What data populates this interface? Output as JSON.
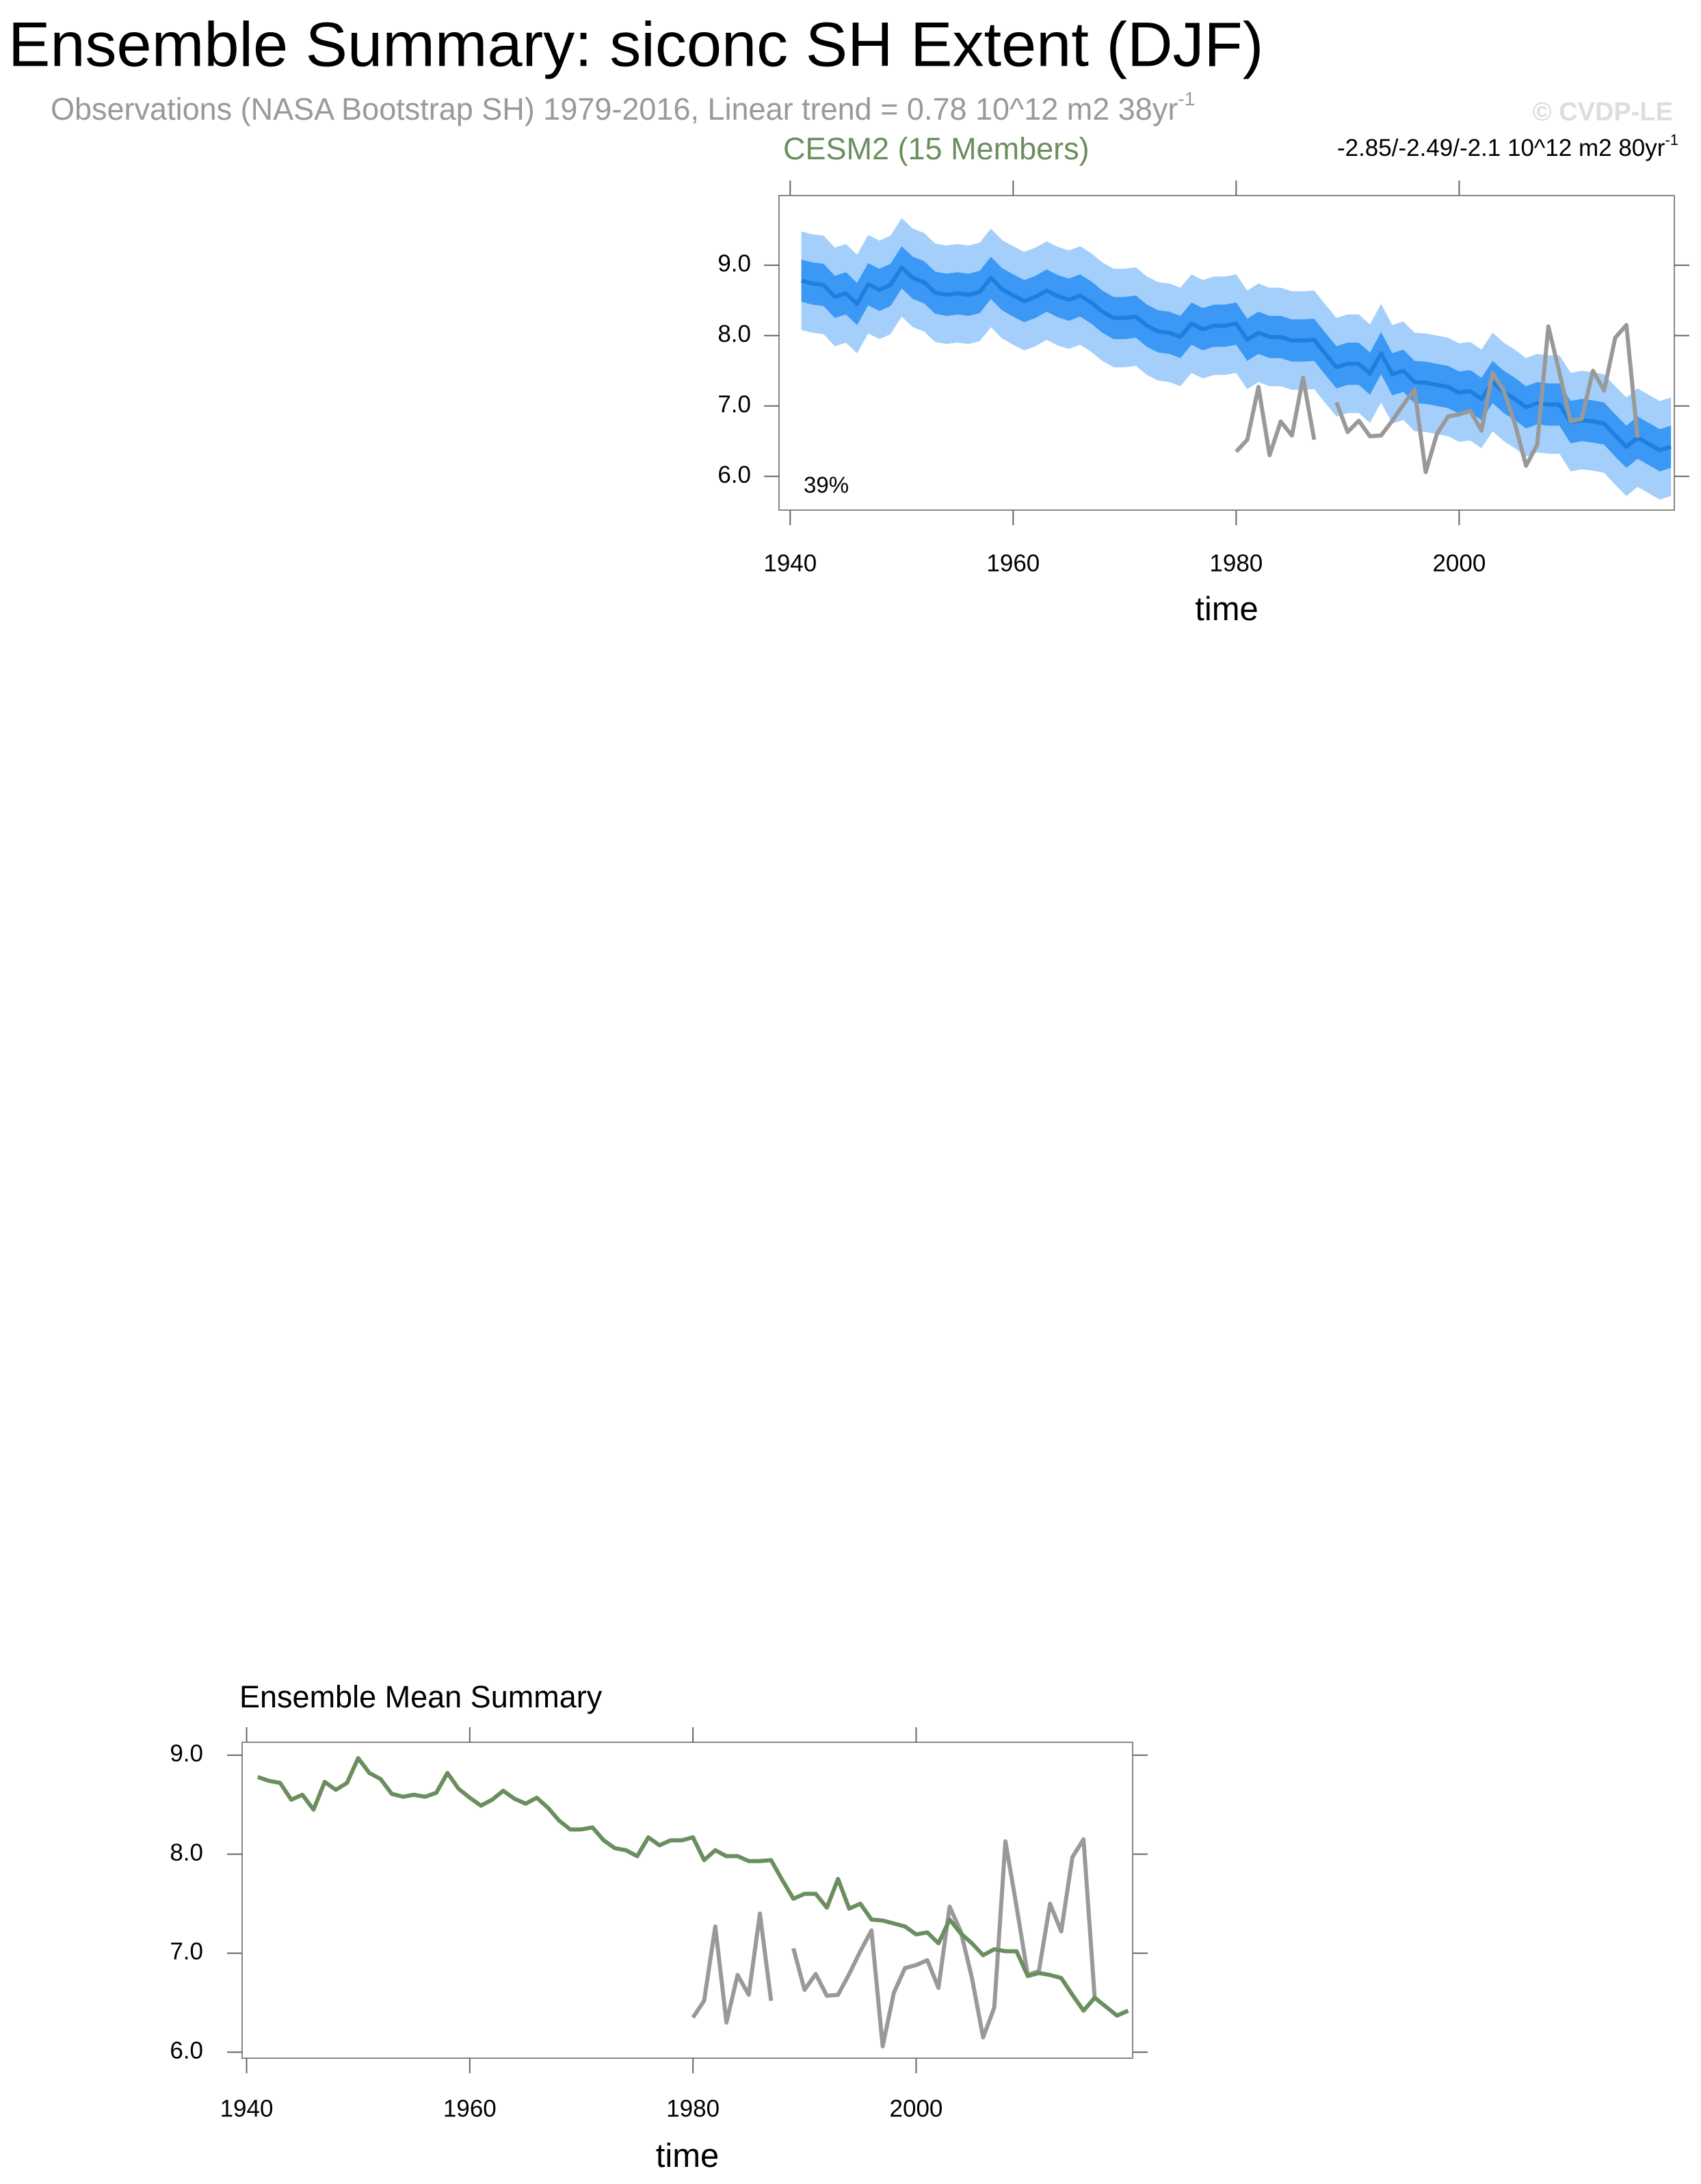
{
  "header": {
    "title": "Ensemble Summary: siconc SH Extent (DJF)",
    "subtitle": {
      "text": "Observations (NASA Bootstrap SH) 1979-2016, Linear trend = 0.78 10^12 m2 38yr",
      "superscript": "-1"
    },
    "watermark": "© CVDP-LE"
  },
  "chart_data": [
    {
      "type": "line",
      "title": "CESM2 (15 Members)",
      "trend": {
        "text": "-2.85/-2.49/-2.1 10^12 m2 80yr",
        "superscript": "-1"
      },
      "annotation": "39%",
      "xlabel": "time",
      "xlim": [
        1939,
        2019.3
      ],
      "ylim": [
        5.52,
        9.99
      ],
      "xticks": [
        1940,
        1960,
        1980,
        2000
      ],
      "yticks": [
        {
          "value": 6,
          "label": "6.0"
        },
        {
          "value": 7,
          "label": "7.0"
        },
        {
          "value": 8,
          "label": "8.0"
        },
        {
          "value": 9,
          "label": "9.0"
        }
      ],
      "x": [
        1941,
        1942,
        1943,
        1944,
        1945,
        1946,
        1947,
        1948,
        1949,
        1950,
        1951,
        1952,
        1953,
        1954,
        1955,
        1956,
        1957,
        1958,
        1959,
        1960,
        1961,
        1962,
        1963,
        1964,
        1965,
        1966,
        1967,
        1968,
        1969,
        1970,
        1971,
        1972,
        1973,
        1974,
        1975,
        1976,
        1977,
        1978,
        1979,
        1980,
        1981,
        1982,
        1983,
        1984,
        1985,
        1986,
        1987,
        1988,
        1989,
        1990,
        1991,
        1992,
        1993,
        1994,
        1995,
        1996,
        1997,
        1998,
        1999,
        2000,
        2001,
        2002,
        2003,
        2004,
        2005,
        2006,
        2007,
        2008,
        2009,
        2010,
        2011,
        2012,
        2013,
        2014,
        2015,
        2016,
        2017,
        2018,
        2019
      ],
      "series": [
        {
          "kind": "band",
          "color": "#a3cffa",
          "high": [
            9.48,
            9.44,
            9.42,
            9.25,
            9.3,
            9.15,
            9.43,
            9.35,
            9.42,
            9.67,
            9.52,
            9.46,
            9.31,
            9.28,
            9.3,
            9.28,
            9.32,
            9.52,
            9.36,
            9.27,
            9.19,
            9.25,
            9.34,
            9.26,
            9.21,
            9.27,
            9.17,
            9.04,
            8.95,
            8.95,
            8.97,
            8.84,
            8.76,
            8.74,
            8.68,
            8.87,
            8.79,
            8.84,
            8.84,
            8.87,
            8.64,
            8.74,
            8.68,
            8.68,
            8.63,
            8.63,
            8.64,
            8.44,
            8.25,
            8.3,
            8.3,
            8.16,
            8.45,
            8.15,
            8.2,
            8.04,
            8.03,
            8.0,
            7.97,
            7.89,
            7.91,
            7.8,
            8.04,
            7.9,
            7.8,
            7.68,
            7.74,
            7.72,
            7.72,
            7.47,
            7.5,
            7.48,
            7.45,
            7.28,
            7.12,
            7.25,
            7.16,
            7.07,
            7.12
          ],
          "low": [
            8.08,
            8.04,
            8.02,
            7.85,
            7.9,
            7.75,
            8.03,
            7.95,
            8.02,
            8.27,
            8.12,
            8.06,
            7.91,
            7.88,
            7.9,
            7.88,
            7.92,
            8.12,
            7.96,
            7.87,
            7.79,
            7.85,
            7.94,
            7.86,
            7.81,
            7.87,
            7.77,
            7.64,
            7.55,
            7.55,
            7.57,
            7.44,
            7.36,
            7.34,
            7.28,
            7.47,
            7.39,
            7.44,
            7.44,
            7.47,
            7.24,
            7.34,
            7.28,
            7.28,
            7.23,
            7.23,
            7.24,
            7.04,
            6.85,
            6.9,
            6.9,
            6.76,
            7.05,
            6.75,
            6.8,
            6.64,
            6.63,
            6.6,
            6.57,
            6.49,
            6.51,
            6.4,
            6.64,
            6.5,
            6.4,
            6.28,
            6.34,
            6.32,
            6.32,
            6.07,
            6.1,
            6.08,
            6.05,
            5.88,
            5.72,
            5.85,
            5.76,
            5.67,
            5.72
          ]
        },
        {
          "kind": "band",
          "color": "#3b98f5",
          "high": [
            9.08,
            9.04,
            9.02,
            8.85,
            8.9,
            8.75,
            9.03,
            8.95,
            9.02,
            9.27,
            9.12,
            9.06,
            8.91,
            8.88,
            8.9,
            8.88,
            8.92,
            9.12,
            8.96,
            8.87,
            8.79,
            8.85,
            8.94,
            8.86,
            8.81,
            8.87,
            8.77,
            8.64,
            8.55,
            8.55,
            8.57,
            8.44,
            8.36,
            8.34,
            8.28,
            8.47,
            8.39,
            8.44,
            8.44,
            8.47,
            8.24,
            8.34,
            8.28,
            8.28,
            8.23,
            8.23,
            8.24,
            8.04,
            7.85,
            7.9,
            7.9,
            7.76,
            8.05,
            7.75,
            7.8,
            7.64,
            7.63,
            7.6,
            7.57,
            7.49,
            7.51,
            7.4,
            7.64,
            7.5,
            7.4,
            7.28,
            7.34,
            7.32,
            7.32,
            7.07,
            7.1,
            7.08,
            7.05,
            6.88,
            6.72,
            6.85,
            6.76,
            6.67,
            6.72
          ],
          "low": [
            8.48,
            8.44,
            8.42,
            8.25,
            8.3,
            8.15,
            8.43,
            8.35,
            8.42,
            8.67,
            8.52,
            8.46,
            8.31,
            8.28,
            8.3,
            8.28,
            8.32,
            8.52,
            8.36,
            8.27,
            8.19,
            8.25,
            8.34,
            8.26,
            8.21,
            8.27,
            8.17,
            8.04,
            7.95,
            7.95,
            7.97,
            7.84,
            7.76,
            7.74,
            7.68,
            7.87,
            7.79,
            7.84,
            7.84,
            7.87,
            7.64,
            7.74,
            7.68,
            7.68,
            7.63,
            7.63,
            7.64,
            7.44,
            7.25,
            7.3,
            7.3,
            7.16,
            7.45,
            7.15,
            7.2,
            7.04,
            7.03,
            7.0,
            6.97,
            6.89,
            6.91,
            6.8,
            7.04,
            6.9,
            6.8,
            6.68,
            6.74,
            6.72,
            6.72,
            6.47,
            6.5,
            6.48,
            6.45,
            6.28,
            6.12,
            6.25,
            6.16,
            6.07,
            6.12
          ]
        },
        {
          "kind": "line",
          "color": "#1f7fe0",
          "values": [
            8.78,
            8.74,
            8.72,
            8.55,
            8.6,
            8.45,
            8.73,
            8.65,
            8.72,
            8.97,
            8.82,
            8.76,
            8.61,
            8.58,
            8.6,
            8.58,
            8.62,
            8.82,
            8.66,
            8.57,
            8.49,
            8.55,
            8.64,
            8.56,
            8.51,
            8.57,
            8.47,
            8.34,
            8.25,
            8.25,
            8.27,
            8.14,
            8.06,
            8.04,
            7.98,
            8.17,
            8.09,
            8.14,
            8.14,
            8.17,
            7.94,
            8.04,
            7.98,
            7.98,
            7.93,
            7.93,
            7.94,
            7.74,
            7.55,
            7.6,
            7.6,
            7.46,
            7.75,
            7.45,
            7.5,
            7.34,
            7.33,
            7.3,
            7.27,
            7.19,
            7.21,
            7.1,
            7.34,
            7.2,
            7.1,
            6.98,
            7.04,
            7.02,
            7.02,
            6.77,
            6.8,
            6.78,
            6.75,
            6.58,
            6.42,
            6.55,
            6.46,
            6.37,
            6.42
          ]
        },
        {
          "kind": "line",
          "color": "#999999",
          "x": [
            1980,
            1981,
            1982,
            1983,
            1984,
            1985,
            1986,
            1987,
            1988,
            1989,
            1990,
            1991,
            1992,
            1993,
            1994,
            1995,
            1996,
            1997,
            1998,
            1999,
            2000,
            2001,
            2002,
            2003,
            2004,
            2005,
            2006,
            2007,
            2008,
            2009,
            2010,
            2011,
            2012,
            2013,
            2014,
            2015,
            2016
          ],
          "values": [
            6.35,
            6.52,
            7.27,
            6.3,
            6.78,
            6.58,
            7.4,
            6.52,
            null,
            7.05,
            6.63,
            6.79,
            6.57,
            6.58,
            6.79,
            7.02,
            7.23,
            6.06,
            6.6,
            6.85,
            6.88,
            6.93,
            6.65,
            7.47,
            7.22,
            6.75,
            6.15,
            6.45,
            8.13,
            7.47,
            6.78,
            6.82,
            7.5,
            7.22,
            7.97,
            8.15,
            6.55
          ]
        }
      ]
    },
    {
      "type": "line",
      "title": "Ensemble Mean Summary",
      "xlabel": "time",
      "xlim": [
        1939.6,
        2019.4
      ],
      "ylim": [
        5.94,
        9.13
      ],
      "xticks": [
        1940,
        1960,
        1980,
        2000
      ],
      "yticks": [
        {
          "value": 6,
          "label": "6.0"
        },
        {
          "value": 7,
          "label": "7.0"
        },
        {
          "value": 8,
          "label": "8.0"
        },
        {
          "value": 9,
          "label": "9.0"
        }
      ],
      "x": [
        1941,
        1942,
        1943,
        1944,
        1945,
        1946,
        1947,
        1948,
        1949,
        1950,
        1951,
        1952,
        1953,
        1954,
        1955,
        1956,
        1957,
        1958,
        1959,
        1960,
        1961,
        1962,
        1963,
        1964,
        1965,
        1966,
        1967,
        1968,
        1969,
        1970,
        1971,
        1972,
        1973,
        1974,
        1975,
        1976,
        1977,
        1978,
        1979,
        1980,
        1981,
        1982,
        1983,
        1984,
        1985,
        1986,
        1987,
        1988,
        1989,
        1990,
        1991,
        1992,
        1993,
        1994,
        1995,
        1996,
        1997,
        1998,
        1999,
        2000,
        2001,
        2002,
        2003,
        2004,
        2005,
        2006,
        2007,
        2008,
        2009,
        2010,
        2011,
        2012,
        2013,
        2014,
        2015,
        2016,
        2017,
        2018,
        2019
      ],
      "series": [
        {
          "kind": "line",
          "color": "#999999",
          "x": [
            1980,
            1981,
            1982,
            1983,
            1984,
            1985,
            1986,
            1987,
            1988,
            1989,
            1990,
            1991,
            1992,
            1993,
            1994,
            1995,
            1996,
            1997,
            1998,
            1999,
            2000,
            2001,
            2002,
            2003,
            2004,
            2005,
            2006,
            2007,
            2008,
            2009,
            2010,
            2011,
            2012,
            2013,
            2014,
            2015,
            2016
          ],
          "values": [
            6.35,
            6.52,
            7.27,
            6.3,
            6.78,
            6.58,
            7.4,
            6.52,
            null,
            7.05,
            6.63,
            6.79,
            6.57,
            6.58,
            6.79,
            7.02,
            7.23,
            6.06,
            6.6,
            6.85,
            6.88,
            6.93,
            6.65,
            7.47,
            7.22,
            6.75,
            6.15,
            6.45,
            8.13,
            7.47,
            6.78,
            6.82,
            7.5,
            7.22,
            7.97,
            8.15,
            6.55
          ]
        },
        {
          "kind": "line",
          "color": "#6b8e5f",
          "values": [
            8.78,
            8.74,
            8.72,
            8.55,
            8.6,
            8.45,
            8.73,
            8.65,
            8.72,
            8.97,
            8.82,
            8.76,
            8.61,
            8.58,
            8.6,
            8.58,
            8.62,
            8.82,
            8.66,
            8.57,
            8.49,
            8.55,
            8.64,
            8.56,
            8.51,
            8.57,
            8.47,
            8.34,
            8.25,
            8.25,
            8.27,
            8.14,
            8.06,
            8.04,
            7.98,
            8.17,
            8.09,
            8.14,
            8.14,
            8.17,
            7.94,
            8.04,
            7.98,
            7.98,
            7.93,
            7.93,
            7.94,
            7.74,
            7.55,
            7.6,
            7.6,
            7.46,
            7.75,
            7.45,
            7.5,
            7.34,
            7.33,
            7.3,
            7.27,
            7.19,
            7.21,
            7.1,
            7.34,
            7.2,
            7.1,
            6.98,
            7.04,
            7.02,
            7.02,
            6.77,
            6.8,
            6.78,
            6.75,
            6.58,
            6.42,
            6.55,
            6.46,
            6.37,
            6.42
          ]
        }
      ]
    }
  ]
}
